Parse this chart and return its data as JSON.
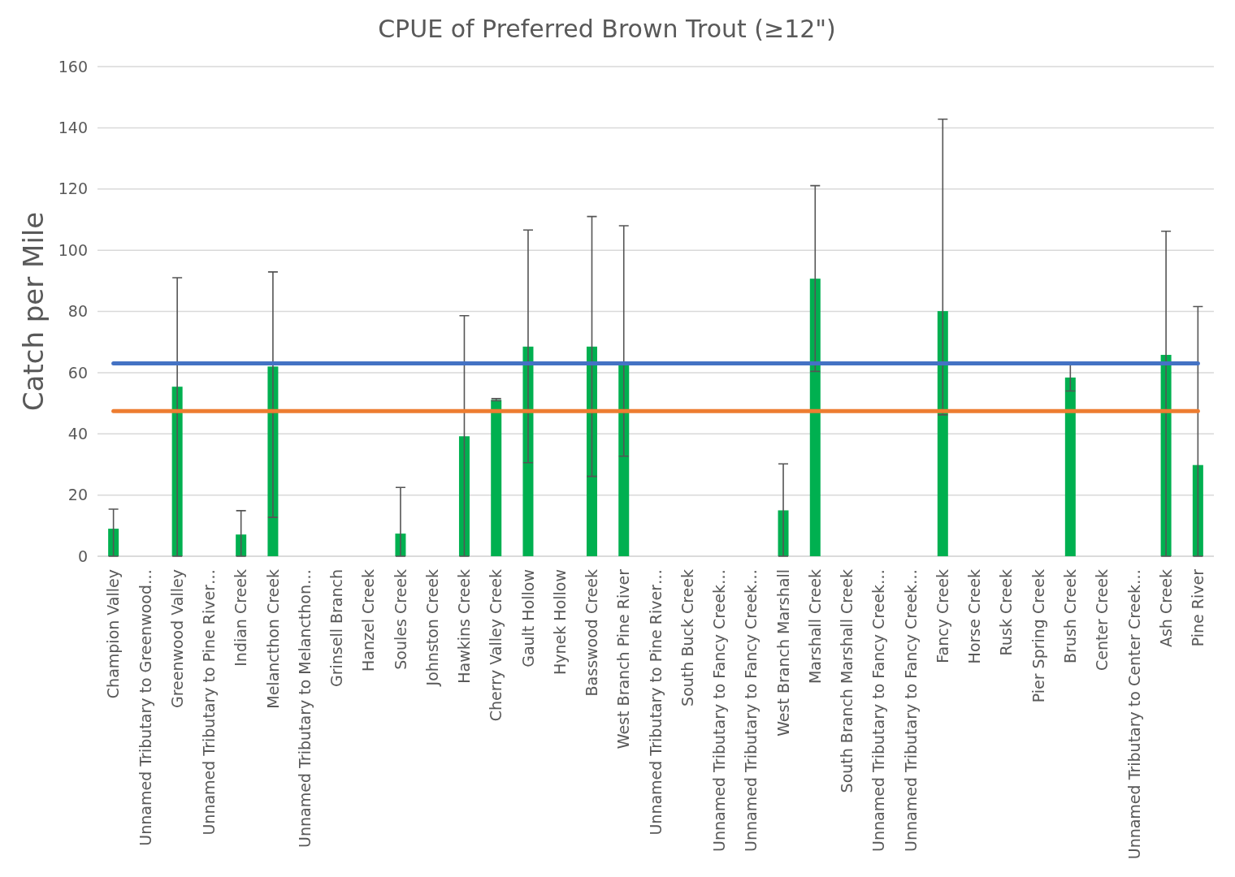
{
  "chart_data": {
    "type": "bar",
    "title": "CPUE of Preferred Brown Trout (≥12\")",
    "ylabel": "Catch per Mile",
    "categories": [
      "Champion Valley",
      "Unnamed Tributary to Greenwood…",
      "Greenwood Valley",
      "Unnamed Tributary to Pine River…",
      "Indian Creek",
      "Melancthon Creek",
      "Unnamed Tributary to Melancthon…",
      "Grinsell Branch",
      "Hanzel Creek",
      "Soules Creek",
      "Johnston Creek",
      "Hawkins Creek",
      "Cherry Valley Creek",
      "Gault Hollow",
      "Hynek Hollow",
      "Basswood Creek",
      "West Branch Pine River",
      "Unnamed Tributary to Pine River…",
      "South Buck Creek",
      "Unnamed Tributary to Fancy Creek…",
      "Unnamed Tributary to Fancy Creek…",
      "West Branch Marshall",
      "Marshall Creek",
      "South Branch Marshall Creek",
      "Unnamed Tributary to Fancy Creek…",
      "Unnamed Tributary to Fancy Creek…",
      "Fancy Creek",
      "Horse Creek",
      "Rusk Creek",
      "Pier Spring Creek",
      "Brush Creek",
      "Center Creek",
      "Unnamed Tributary to Center Creek…",
      "Ash Creek",
      "Pine River"
    ],
    "values": [
      9,
      0,
      55.4,
      0,
      7.1,
      62,
      0,
      0,
      0,
      7.4,
      0,
      39.2,
      51.1,
      68.5,
      0,
      68.5,
      62.5,
      0,
      0,
      0,
      0,
      15,
      90.7,
      0,
      0,
      0,
      80.1,
      0,
      0,
      0,
      58.4,
      0,
      0,
      65.8,
      29.8
    ],
    "errors": [
      [
        0,
        15.4
      ],
      null,
      [
        0,
        91
      ],
      null,
      [
        0,
        14.9
      ],
      [
        12.7,
        92.9
      ],
      null,
      null,
      null,
      [
        0,
        22.5
      ],
      null,
      [
        0,
        78.6
      ],
      [
        50.8,
        51.5
      ],
      [
        30.6,
        106.6
      ],
      null,
      [
        26.1,
        111
      ],
      [
        32.7,
        108
      ],
      null,
      null,
      null,
      null,
      [
        0,
        30.2
      ],
      [
        60.4,
        121.1
      ],
      null,
      null,
      null,
      [
        46.2,
        142.8
      ],
      null,
      null,
      null,
      [
        54,
        63.1
      ],
      null,
      null,
      [
        0,
        106.2
      ],
      [
        0,
        81.6
      ]
    ],
    "color": "#00b050",
    "ylim": [
      0,
      160
    ],
    "yticks": [
      0,
      20,
      40,
      60,
      80,
      100,
      120,
      140,
      160
    ],
    "grid": "y",
    "ref_lines": [
      {
        "axis": "y",
        "value": 63,
        "color": "#4472c4"
      },
      {
        "axis": "y",
        "value": 47.4,
        "color": "#ed7d31"
      }
    ]
  }
}
